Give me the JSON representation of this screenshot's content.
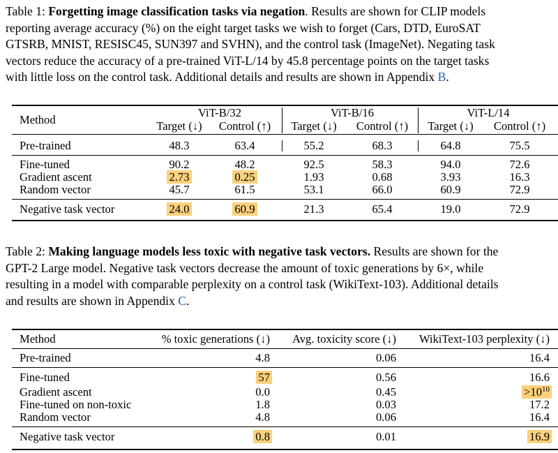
{
  "table1": {
    "caption": {
      "line1_prefix": "Table 1: ",
      "line1_bold": "Forgetting image classification tasks via negation",
      "line1_rest": ". Results are shown for CLIP models",
      "line2": "reporting average accuracy (%) on the eight target tasks we wish to forget (Cars, DTD, EuroSAT",
      "line3": "GTSRB, MNIST, RESISC45, SUN397 and SVHN), and the control task (ImageNet). Negating task",
      "line4": "vectors reduce the accuracy of a pre-trained ViT-L/14 by 45.8 percentage points on the target tasks",
      "line5_text": "with little loss on the control task. Additional details and results are shown in Appendix ",
      "line5_ref": "B",
      "line5_end": "."
    },
    "header": {
      "method": "Method",
      "groups": [
        "ViT-B/32",
        "ViT-B/16",
        "ViT-L/14"
      ],
      "target": "Target (↓)",
      "control": "Control (↑)"
    },
    "rows": [
      {
        "method": "Pre-trained",
        "values": [
          "48.3",
          "63.4",
          "55.2",
          "68.3",
          "64.8",
          "75.5"
        ]
      },
      {
        "method": "Fine-tuned",
        "values": [
          "90.2",
          "48.2",
          "92.5",
          "58.3",
          "94.0",
          "72.6"
        ]
      },
      {
        "method": "Gradient ascent",
        "values": [
          "2.73",
          "0.25",
          "1.93",
          "0.68",
          "3.93",
          "16.3"
        ]
      },
      {
        "method": "Random vector",
        "values": [
          "45.7",
          "61.5",
          "53.1",
          "66.0",
          "60.9",
          "72.9"
        ]
      },
      {
        "method": "Negative task vector",
        "values": [
          "24.0",
          "60.9",
          "21.3",
          "65.4",
          "19.0",
          "72.9"
        ]
      }
    ]
  },
  "table2": {
    "caption": {
      "line1_prefix": "Table 2: ",
      "line1_bold": "Making language models less toxic with negative task vectors.",
      "line1_rest": " Results are shown for the",
      "line2": "GPT-2 Large model. Negative task vectors decrease the amount of toxic generations by 6×, while",
      "line3": "resulting in a model with comparable perplexity on a control task (WikiText-103). Additional details",
      "line4_text": "and results are shown in Appendix ",
      "line4_ref": "C",
      "line4_end": "."
    },
    "header": {
      "method": "Method",
      "toxic": "% toxic generations (↓)",
      "score": "Avg. toxicity score (↓)",
      "ppl": "WikiText-103 perplexity (↓)"
    },
    "rows": [
      {
        "method": "Pre-trained",
        "toxic": "4.8",
        "score": "0.06",
        "ppl": "16.4"
      },
      {
        "method": "Fine-tuned",
        "toxic": "57",
        "score": "0.56",
        "ppl": "16.6"
      },
      {
        "method": "Gradient ascent",
        "toxic": "0.0",
        "score": "0.45",
        "ppl_base": ">10",
        "ppl_exp": "10"
      },
      {
        "method": "Fine-tuned on non-toxic",
        "toxic": "1.8",
        "score": "0.03",
        "ppl": "17.2"
      },
      {
        "method": "Random vector",
        "toxic": "4.8",
        "score": "0.06",
        "ppl": "16.4"
      },
      {
        "method": "Negative task vector",
        "toxic": "0.8",
        "score": "0.01",
        "ppl": "16.9"
      }
    ]
  }
}
